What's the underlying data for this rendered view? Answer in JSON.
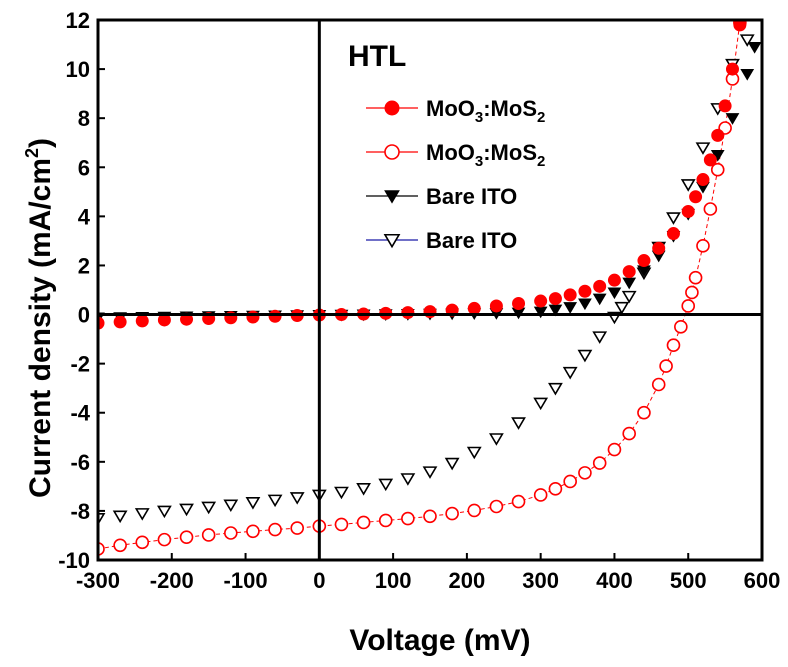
{
  "chart_data": {
    "type": "scatter",
    "xlabel": "Voltage (mV)",
    "ylabel_main": "Current density (mA/cm",
    "ylabel_sup": "2",
    "ylabel_tail": ")",
    "xlim": [
      -300,
      600
    ],
    "ylim": [
      -10,
      12
    ],
    "xticks": [
      -300,
      -200,
      -100,
      0,
      100,
      200,
      300,
      400,
      500,
      600
    ],
    "yticks": [
      -10,
      -8,
      -6,
      -4,
      -2,
      0,
      2,
      4,
      6,
      8,
      10,
      12
    ],
    "legend_title": "HTL",
    "legend_placement": "top-right",
    "grid": false,
    "series": [
      {
        "legend_base": "MoO",
        "legend_sub1": "3",
        "legend_mid": ":MoS",
        "legend_sub2": "2",
        "marker": "circle",
        "filled": true,
        "color": "#ff0000",
        "x": [
          -300,
          -270,
          -240,
          -210,
          -180,
          -150,
          -120,
          -90,
          -60,
          -30,
          0,
          30,
          60,
          90,
          120,
          150,
          180,
          210,
          240,
          270,
          300,
          320,
          340,
          360,
          380,
          400,
          420,
          440,
          460,
          480,
          500,
          510,
          520,
          530,
          540,
          550,
          560,
          570
        ],
        "y": [
          -0.35,
          -0.3,
          -0.26,
          -0.22,
          -0.19,
          -0.16,
          -0.13,
          -0.1,
          -0.07,
          -0.04,
          -0.02,
          0.0,
          0.02,
          0.05,
          0.08,
          0.12,
          0.18,
          0.25,
          0.35,
          0.45,
          0.55,
          0.65,
          0.8,
          0.95,
          1.15,
          1.4,
          1.75,
          2.2,
          2.7,
          3.3,
          4.2,
          4.8,
          5.5,
          6.3,
          7.3,
          8.5,
          10.0,
          11.8
        ]
      },
      {
        "legend_base": "MoO",
        "legend_sub1": "3",
        "legend_mid": ":MoS",
        "legend_sub2": "2",
        "marker": "circle",
        "filled": false,
        "color": "#ff0000",
        "x": [
          -300,
          -270,
          -240,
          -210,
          -180,
          -150,
          -120,
          -90,
          -60,
          -30,
          0,
          30,
          60,
          90,
          120,
          150,
          180,
          210,
          240,
          270,
          300,
          320,
          340,
          360,
          380,
          400,
          420,
          440,
          460,
          470,
          480,
          490,
          500,
          505,
          510,
          520,
          530,
          540,
          550,
          560,
          570
        ],
        "y": [
          -9.55,
          -9.4,
          -9.28,
          -9.17,
          -9.07,
          -8.98,
          -8.9,
          -8.83,
          -8.76,
          -8.7,
          -8.62,
          -8.55,
          -8.47,
          -8.39,
          -8.31,
          -8.22,
          -8.11,
          -7.98,
          -7.82,
          -7.62,
          -7.35,
          -7.1,
          -6.8,
          -6.45,
          -6.05,
          -5.5,
          -4.85,
          -4.0,
          -2.85,
          -2.1,
          -1.25,
          -0.5,
          0.35,
          0.9,
          1.5,
          2.8,
          4.3,
          5.9,
          7.6,
          9.6,
          11.9
        ]
      },
      {
        "legend_base": "Bare ITO",
        "marker": "triangle-down",
        "filled": true,
        "color": "#000000",
        "x": [
          -300,
          -270,
          -240,
          -210,
          -180,
          -150,
          -120,
          -90,
          -60,
          -30,
          0,
          30,
          60,
          90,
          120,
          150,
          180,
          210,
          240,
          270,
          300,
          320,
          340,
          360,
          380,
          400,
          420,
          440,
          460,
          480,
          500,
          520,
          540,
          560,
          580,
          590
        ],
        "y": [
          -0.12,
          -0.11,
          -0.1,
          -0.09,
          -0.08,
          -0.07,
          -0.06,
          -0.05,
          -0.04,
          -0.03,
          -0.02,
          -0.01,
          0.0,
          0.01,
          0.02,
          0.03,
          0.04,
          0.05,
          0.06,
          0.08,
          0.12,
          0.2,
          0.3,
          0.45,
          0.65,
          0.9,
          1.3,
          1.8,
          2.4,
          3.2,
          4.1,
          5.2,
          6.5,
          8.0,
          9.8,
          10.9
        ]
      },
      {
        "legend_base": "Bare ITO",
        "marker": "triangle-down",
        "filled": false,
        "color": "#000000",
        "x": [
          -300,
          -270,
          -240,
          -210,
          -180,
          -150,
          -120,
          -90,
          -60,
          -30,
          0,
          30,
          60,
          90,
          120,
          150,
          180,
          210,
          240,
          270,
          300,
          320,
          340,
          360,
          380,
          400,
          410,
          420,
          440,
          460,
          480,
          500,
          520,
          540,
          560,
          580
        ],
        "y": [
          -8.3,
          -8.2,
          -8.1,
          -8.0,
          -7.92,
          -7.84,
          -7.75,
          -7.65,
          -7.55,
          -7.45,
          -7.35,
          -7.23,
          -7.08,
          -6.9,
          -6.68,
          -6.4,
          -6.05,
          -5.6,
          -5.05,
          -4.4,
          -3.6,
          -3.0,
          -2.35,
          -1.65,
          -0.9,
          -0.1,
          0.3,
          0.75,
          1.7,
          2.75,
          3.95,
          5.3,
          6.8,
          8.4,
          10.2,
          11.2
        ]
      }
    ]
  }
}
